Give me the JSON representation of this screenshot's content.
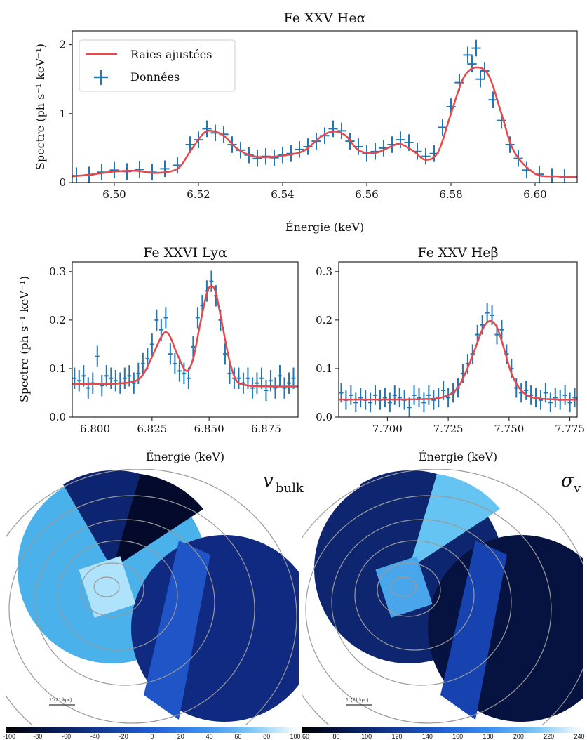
{
  "chart_data": [
    {
      "id": "he_alpha",
      "type": "line",
      "title": "Fe XXV Heα",
      "xlabel": "Énergie (keV)",
      "ylabel": "Spectre (ph s⁻¹ keV⁻¹)",
      "xlim": [
        6.49,
        6.61
      ],
      "ylim": [
        0,
        2.2
      ],
      "xticks": [
        6.5,
        6.52,
        6.54,
        6.56,
        6.58,
        6.6
      ],
      "xtick_labels": [
        "6.50",
        "6.52",
        "6.54",
        "6.56",
        "6.58",
        "6.60"
      ],
      "yticks": [
        0,
        1,
        2
      ],
      "ytick_labels": [
        "0",
        "1",
        "2"
      ],
      "legend": {
        "position": "top-left",
        "entries": [
          "Raies ajustées",
          "Données"
        ]
      },
      "model": {
        "name": "Raies ajustées",
        "color": "#e8474c",
        "x": [
          6.49,
          6.495,
          6.5,
          6.505,
          6.51,
          6.515,
          6.518,
          6.521,
          6.523,
          6.526,
          6.529,
          6.532,
          6.535,
          6.54,
          6.545,
          6.549,
          6.552,
          6.555,
          6.558,
          6.562,
          6.566,
          6.568,
          6.571,
          6.574,
          6.577,
          6.58,
          6.583,
          6.586,
          6.589,
          6.592,
          6.595,
          6.6,
          6.605,
          6.61
        ],
        "y": [
          0.09,
          0.12,
          0.16,
          0.17,
          0.14,
          0.2,
          0.45,
          0.7,
          0.75,
          0.68,
          0.5,
          0.4,
          0.37,
          0.39,
          0.46,
          0.66,
          0.74,
          0.68,
          0.47,
          0.43,
          0.53,
          0.56,
          0.46,
          0.33,
          0.45,
          1.0,
          1.52,
          1.67,
          1.55,
          1.0,
          0.45,
          0.13,
          0.09,
          0.08
        ]
      },
      "data": {
        "name": "Données",
        "color": "#1f77b4",
        "x": [
          6.491,
          6.494,
          6.497,
          6.5,
          6.503,
          6.506,
          6.509,
          6.512,
          6.515,
          6.518,
          6.52,
          6.522,
          6.524,
          6.526,
          6.528,
          6.53,
          6.532,
          6.534,
          6.536,
          6.538,
          6.54,
          6.542,
          6.544,
          6.546,
          6.548,
          6.55,
          6.552,
          6.554,
          6.556,
          6.558,
          6.56,
          6.562,
          6.564,
          6.566,
          6.568,
          6.57,
          6.572,
          6.574,
          6.576,
          6.578,
          6.58,
          6.582,
          6.584,
          6.585,
          6.586,
          6.587,
          6.588,
          6.59,
          6.592,
          6.594,
          6.596,
          6.598,
          6.601,
          6.604,
          6.607
        ],
        "y": [
          0.1,
          0.11,
          0.15,
          0.18,
          0.16,
          0.19,
          0.15,
          0.2,
          0.25,
          0.55,
          0.62,
          0.78,
          0.72,
          0.7,
          0.55,
          0.47,
          0.4,
          0.35,
          0.38,
          0.36,
          0.4,
          0.42,
          0.48,
          0.52,
          0.6,
          0.68,
          0.78,
          0.75,
          0.6,
          0.52,
          0.42,
          0.45,
          0.5,
          0.55,
          0.62,
          0.58,
          0.45,
          0.38,
          0.42,
          0.8,
          1.1,
          1.45,
          1.85,
          1.72,
          1.95,
          1.5,
          1.62,
          1.2,
          0.9,
          0.55,
          0.35,
          0.18,
          0.12,
          0.09,
          0.08
        ],
        "yerr": 0.12
      }
    },
    {
      "id": "ly_alpha",
      "type": "line",
      "title": "Fe XXVI Lyα",
      "xlabel": "Énergie (keV)",
      "ylabel": "Spectre (ph s⁻¹ keV⁻¹)",
      "xlim": [
        6.79,
        6.889
      ],
      "ylim": [
        0,
        0.32
      ],
      "xticks": [
        6.8,
        6.825,
        6.85,
        6.875
      ],
      "xtick_labels": [
        "6.800",
        "6.825",
        "6.850",
        "6.875"
      ],
      "yticks": [
        0.0,
        0.1,
        0.2,
        0.3
      ],
      "ytick_labels": [
        "0.0",
        "0.1",
        "0.2",
        "0.3"
      ],
      "model": {
        "name": "Raies ajustées",
        "color": "#e8474c",
        "x": [
          6.79,
          6.8,
          6.81,
          6.818,
          6.822,
          6.826,
          6.829,
          6.831,
          6.833,
          6.836,
          6.84,
          6.843,
          6.846,
          6.849,
          6.851,
          6.853,
          6.856,
          6.859,
          6.862,
          6.866,
          6.87,
          6.88,
          6.889
        ],
        "y": [
          0.068,
          0.068,
          0.069,
          0.075,
          0.095,
          0.135,
          0.165,
          0.175,
          0.165,
          0.13,
          0.095,
          0.12,
          0.19,
          0.255,
          0.27,
          0.255,
          0.185,
          0.115,
          0.075,
          0.066,
          0.064,
          0.063,
          0.063
        ]
      },
      "data": {
        "name": "Données",
        "color": "#1f77b4",
        "x": [
          6.791,
          6.793,
          6.795,
          6.797,
          6.799,
          6.801,
          6.803,
          6.805,
          6.807,
          6.809,
          6.811,
          6.813,
          6.815,
          6.817,
          6.819,
          6.821,
          6.823,
          6.825,
          6.827,
          6.829,
          6.831,
          6.833,
          6.835,
          6.837,
          6.839,
          6.841,
          6.843,
          6.845,
          6.847,
          6.849,
          6.851,
          6.853,
          6.855,
          6.857,
          6.859,
          6.861,
          6.863,
          6.865,
          6.867,
          6.869,
          6.871,
          6.873,
          6.875,
          6.877,
          6.879,
          6.881,
          6.883,
          6.885,
          6.887
        ],
        "y": [
          0.08,
          0.075,
          0.085,
          0.06,
          0.07,
          0.125,
          0.065,
          0.085,
          0.08,
          0.075,
          0.07,
          0.08,
          0.085,
          0.07,
          0.09,
          0.11,
          0.12,
          0.15,
          0.2,
          0.18,
          0.205,
          0.13,
          0.11,
          0.095,
          0.09,
          0.08,
          0.145,
          0.205,
          0.23,
          0.26,
          0.28,
          0.25,
          0.2,
          0.13,
          0.09,
          0.08,
          0.08,
          0.07,
          0.08,
          0.06,
          0.07,
          0.08,
          0.055,
          0.075,
          0.06,
          0.085,
          0.06,
          0.07,
          0.08
        ],
        "yerr": 0.022
      }
    },
    {
      "id": "he_beta",
      "type": "line",
      "title": "Fe XXV Heβ",
      "xlabel": "Énergie (keV)",
      "ylabel": "",
      "xlim": [
        7.68,
        7.778
      ],
      "ylim": [
        0,
        0.32
      ],
      "xticks": [
        7.7,
        7.725,
        7.75,
        7.775
      ],
      "xtick_labels": [
        "7.700",
        "7.725",
        "7.750",
        "7.775"
      ],
      "yticks": [
        0.0,
        0.1,
        0.2,
        0.3
      ],
      "ytick_labels": [
        "0.0",
        "0.1",
        "0.2",
        "0.3"
      ],
      "model": {
        "name": "Raies ajustées",
        "color": "#e8474c",
        "x": [
          7.68,
          7.7,
          7.715,
          7.722,
          7.728,
          7.732,
          7.736,
          7.739,
          7.742,
          7.745,
          7.748,
          7.751,
          7.755,
          7.76,
          7.77,
          7.778
        ],
        "y": [
          0.036,
          0.036,
          0.037,
          0.04,
          0.055,
          0.09,
          0.14,
          0.18,
          0.198,
          0.185,
          0.14,
          0.09,
          0.055,
          0.04,
          0.036,
          0.036
        ]
      },
      "data": {
        "name": "Données",
        "color": "#1f77b4",
        "x": [
          7.681,
          7.683,
          7.685,
          7.687,
          7.689,
          7.691,
          7.693,
          7.695,
          7.697,
          7.699,
          7.701,
          7.703,
          7.705,
          7.707,
          7.709,
          7.711,
          7.713,
          7.715,
          7.717,
          7.719,
          7.721,
          7.723,
          7.725,
          7.727,
          7.729,
          7.731,
          7.733,
          7.735,
          7.737,
          7.739,
          7.741,
          7.743,
          7.745,
          7.747,
          7.749,
          7.751,
          7.753,
          7.755,
          7.757,
          7.759,
          7.761,
          7.763,
          7.765,
          7.767,
          7.769,
          7.771,
          7.773,
          7.775,
          7.777
        ],
        "y": [
          0.05,
          0.035,
          0.045,
          0.03,
          0.04,
          0.035,
          0.03,
          0.045,
          0.035,
          0.04,
          0.03,
          0.045,
          0.04,
          0.035,
          0.02,
          0.045,
          0.04,
          0.03,
          0.045,
          0.035,
          0.04,
          0.055,
          0.04,
          0.05,
          0.06,
          0.09,
          0.11,
          0.13,
          0.17,
          0.19,
          0.215,
          0.21,
          0.17,
          0.18,
          0.13,
          0.1,
          0.06,
          0.05,
          0.055,
          0.045,
          0.04,
          0.035,
          0.05,
          0.03,
          0.04,
          0.035,
          0.045,
          0.03,
          0.04
        ],
        "yerr": 0.02
      }
    },
    {
      "id": "map_vbulk",
      "type": "heatmap",
      "label": "v",
      "label_sub": "bulk",
      "scale_bar": "1' (21 kpc)",
      "colorbar": {
        "ticks": [
          "-100",
          "-80",
          "-60",
          "-40",
          "-20",
          "0",
          "20",
          "40",
          "60",
          "80",
          "100"
        ],
        "colors": [
          "#000000",
          "#071a55",
          "#113b98",
          "#1f5ed6",
          "#3a8ff0",
          "#79c6f7",
          "#ffffff"
        ]
      },
      "regions": [
        {
          "id": "outer-west",
          "color": "#4ab1ea"
        },
        {
          "id": "north-west-sector",
          "color": "#0d2470"
        },
        {
          "id": "north-east-sector",
          "color": "#030a2c"
        },
        {
          "id": "central-box",
          "color": "#aee3fb"
        },
        {
          "id": "east-band",
          "color": "#1f55c6"
        },
        {
          "id": "east-circle",
          "color": "#102a82"
        }
      ]
    },
    {
      "id": "map_sigmav",
      "type": "heatmap",
      "label": "σ",
      "label_sub": "v",
      "scale_bar": "1' (21 kpc)",
      "colorbar": {
        "ticks": [
          "60",
          "80",
          "100",
          "120",
          "140",
          "160",
          "180",
          "200",
          "220",
          "240"
        ],
        "colors": [
          "#000000",
          "#071a55",
          "#113b98",
          "#1f5ed6",
          "#3a8ff0",
          "#79c6f7",
          "#ffffff"
        ]
      },
      "regions": [
        {
          "id": "outer-west",
          "color": "#0e2670"
        },
        {
          "id": "north-west-sector",
          "color": "#0e2670"
        },
        {
          "id": "north-east-sector",
          "color": "#66c4f3"
        },
        {
          "id": "central-box",
          "color": "#4aa6ea"
        },
        {
          "id": "east-band",
          "color": "#1743b0"
        },
        {
          "id": "east-circle",
          "color": "#06123f"
        }
      ]
    }
  ]
}
